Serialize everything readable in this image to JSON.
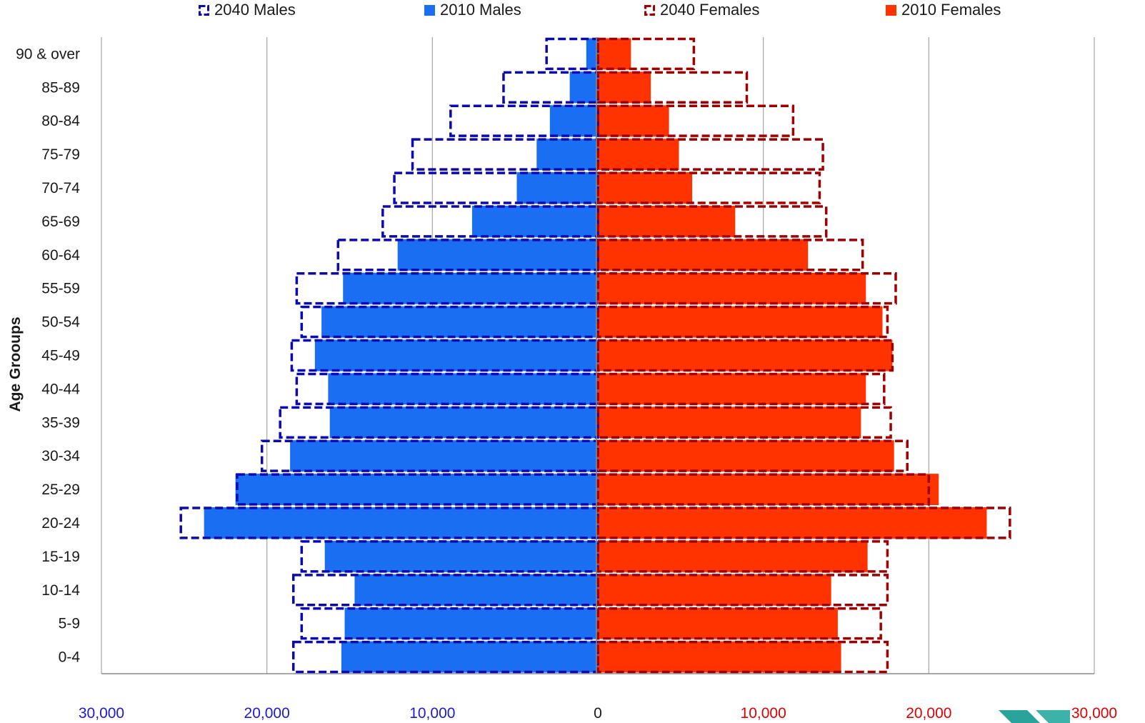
{
  "chart_data": {
    "type": "bar",
    "orientation": "horizontal-population-pyramid",
    "ylabel": "Age Grooups",
    "categories": [
      "0-4",
      "5-9",
      "10-14",
      "15-19",
      "20-24",
      "25-29",
      "30-34",
      "35-39",
      "40-44",
      "45-49",
      "50-54",
      "55-59",
      "60-64",
      "65-69",
      "70-74",
      "75-79",
      "80-84",
      "85-89",
      "90 & over"
    ],
    "xlim": [
      -30000,
      30000
    ],
    "x_tick_values": [
      -30000,
      -20000,
      -10000,
      0,
      10000,
      20000,
      30000
    ],
    "x_tick_labels": [
      "30,000",
      "20,000",
      "10,000",
      "0",
      "10,000",
      "20,000",
      "30,000"
    ],
    "grid": true,
    "legend_position": "top",
    "colors": {
      "males_2010": "#1a6ef2",
      "females_2010": "#ff3300",
      "males_2040": "#0a0ab4",
      "females_2040": "#a00000",
      "tick_left": "#1a1ad6",
      "tick_center": "#1a1a1a",
      "tick_right": "#e00000",
      "grid": "#a6a6a6"
    },
    "series": [
      {
        "name": "2040 Males",
        "style": "dashed-outline",
        "side": "left",
        "values": [
          18400,
          17900,
          18400,
          17900,
          25200,
          21800,
          20300,
          19200,
          18200,
          18500,
          17900,
          18200,
          15700,
          13000,
          12300,
          11200,
          8900,
          5700,
          3100
        ]
      },
      {
        "name": "2010 Males",
        "style": "filled",
        "side": "left",
        "values": [
          15500,
          15300,
          14700,
          16500,
          23800,
          21900,
          18600,
          16200,
          16300,
          17100,
          16700,
          15400,
          12100,
          7600,
          4900,
          3700,
          2900,
          1700,
          700
        ]
      },
      {
        "name": "2040 Females",
        "style": "dashed-outline",
        "side": "right",
        "values": [
          17500,
          17100,
          17500,
          17500,
          24900,
          20000,
          18700,
          17700,
          17300,
          17800,
          17500,
          18000,
          16000,
          13800,
          13400,
          13600,
          11800,
          9000,
          5800
        ]
      },
      {
        "name": "2010 Females",
        "style": "filled",
        "side": "right",
        "values": [
          14700,
          14500,
          14100,
          16300,
          23500,
          20600,
          17900,
          15900,
          16200,
          17800,
          17200,
          16200,
          12700,
          8300,
          5700,
          4900,
          4300,
          3200,
          2000
        ]
      }
    ]
  }
}
